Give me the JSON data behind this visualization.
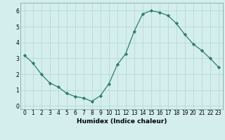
{
  "x": [
    0,
    1,
    2,
    3,
    4,
    5,
    6,
    7,
    8,
    9,
    10,
    11,
    12,
    13,
    14,
    15,
    16,
    17,
    18,
    19,
    20,
    21,
    22,
    23
  ],
  "y": [
    3.2,
    2.7,
    2.0,
    1.45,
    1.2,
    0.8,
    0.6,
    0.5,
    0.3,
    0.65,
    1.4,
    2.6,
    3.3,
    4.7,
    5.8,
    6.0,
    5.9,
    5.7,
    5.2,
    4.5,
    3.9,
    3.5,
    3.0,
    2.45
  ],
  "line_color": "#2e7d6e",
  "marker": "D",
  "marker_size": 2.2,
  "bg_color": "#d4eeee",
  "grid_color": "#b8d8d8",
  "xlabel": "Humidex (Indice chaleur)",
  "xlim": [
    -0.5,
    23.5
  ],
  "ylim": [
    -0.2,
    6.5
  ],
  "xticks": [
    0,
    1,
    2,
    3,
    4,
    5,
    6,
    7,
    8,
    9,
    10,
    11,
    12,
    13,
    14,
    15,
    16,
    17,
    18,
    19,
    20,
    21,
    22,
    23
  ],
  "yticks": [
    0,
    1,
    2,
    3,
    4,
    5,
    6
  ],
  "xlabel_fontsize": 6.5,
  "tick_fontsize": 5.5
}
